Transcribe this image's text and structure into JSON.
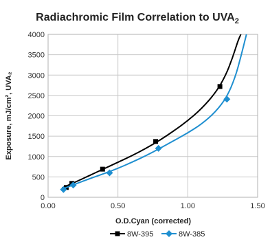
{
  "chart_data": {
    "type": "line",
    "title": "Radiachromic Film Correlation to UVA",
    "title_subscript": "2",
    "xlabel": "O.D.Cyan (corrected)",
    "ylabel": "Exposure, mJ/cm², UVA₂",
    "xlim": [
      0.0,
      1.5
    ],
    "ylim": [
      0,
      4000
    ],
    "x_ticks": [
      "0.00",
      "0.50",
      "1.00",
      "1.50"
    ],
    "y_ticks": [
      "0",
      "500",
      "1000",
      "1500",
      "2000",
      "2500",
      "3000",
      "3500",
      "4000"
    ],
    "grid": true,
    "legend_position": "bottom",
    "series": [
      {
        "name": "8W-395",
        "color": "#000000",
        "marker": "square",
        "points": [
          [
            0.13,
            240
          ],
          [
            0.17,
            340
          ],
          [
            0.39,
            690
          ],
          [
            0.77,
            1370
          ],
          [
            1.23,
            2720
          ]
        ],
        "trend": [
          [
            0.1,
            230
          ],
          [
            0.2,
            380
          ],
          [
            0.3,
            540
          ],
          [
            0.4,
            700
          ],
          [
            0.5,
            860
          ],
          [
            0.6,
            1020
          ],
          [
            0.7,
            1200
          ],
          [
            0.8,
            1400
          ],
          [
            0.9,
            1630
          ],
          [
            1.0,
            1880
          ],
          [
            1.1,
            2180
          ],
          [
            1.2,
            2570
          ],
          [
            1.27,
            2980
          ],
          [
            1.32,
            3420
          ],
          [
            1.36,
            3850
          ],
          [
            1.38,
            4000
          ]
        ]
      },
      {
        "name": "8W-385",
        "color": "#1f8fd0",
        "marker": "diamond",
        "points": [
          [
            0.11,
            190
          ],
          [
            0.18,
            300
          ],
          [
            0.44,
            600
          ],
          [
            0.79,
            1200
          ],
          [
            1.28,
            2410
          ]
        ],
        "trend": [
          [
            0.1,
            200
          ],
          [
            0.2,
            330
          ],
          [
            0.3,
            460
          ],
          [
            0.4,
            580
          ],
          [
            0.5,
            710
          ],
          [
            0.6,
            860
          ],
          [
            0.7,
            1020
          ],
          [
            0.8,
            1200
          ],
          [
            0.9,
            1390
          ],
          [
            1.0,
            1580
          ],
          [
            1.1,
            1800
          ],
          [
            1.2,
            2100
          ],
          [
            1.28,
            2460
          ],
          [
            1.34,
            2950
          ],
          [
            1.38,
            3450
          ],
          [
            1.42,
            4000
          ]
        ]
      }
    ]
  },
  "legend": {
    "items": [
      {
        "label": "8W-395"
      },
      {
        "label": "8W-385"
      }
    ]
  }
}
